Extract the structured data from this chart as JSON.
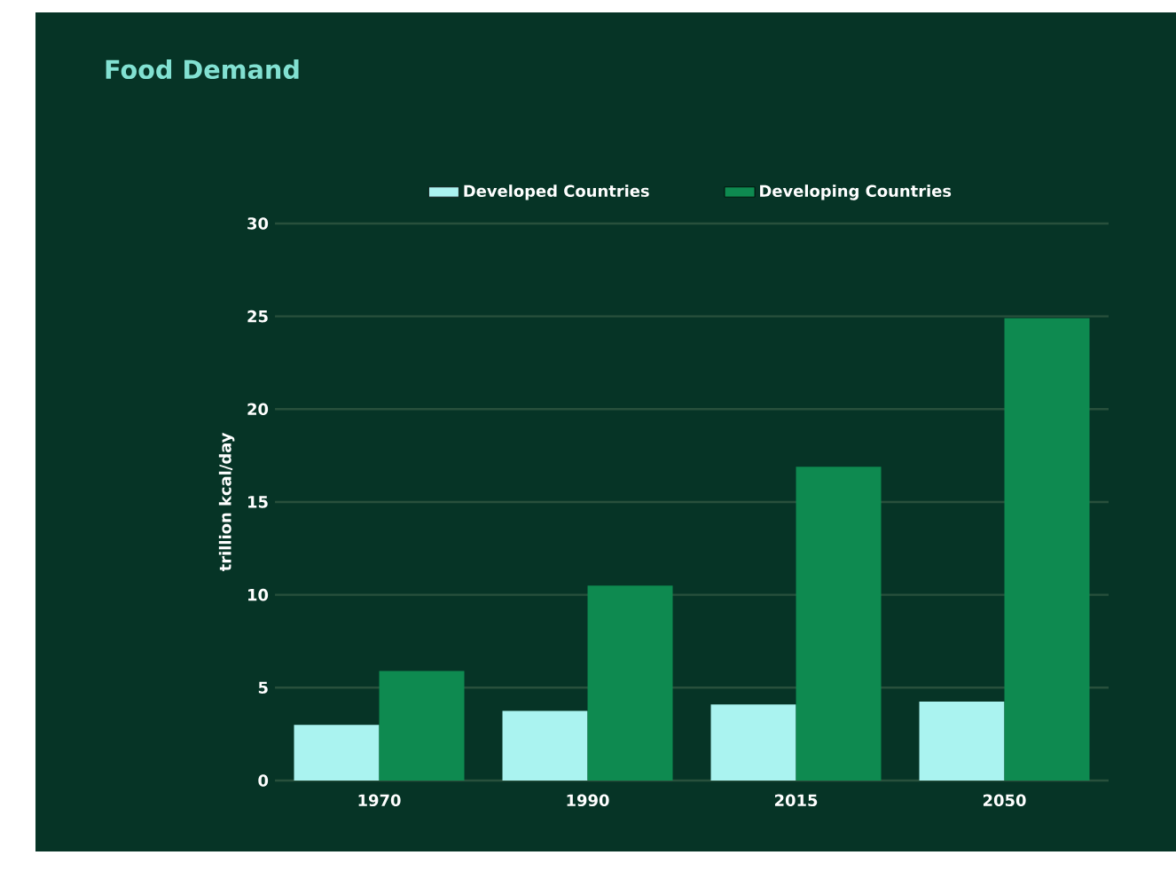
{
  "chart_data": {
    "type": "bar",
    "title": "Food Demand",
    "ylabel": "trillion kcal/day",
    "categories": [
      "1970",
      "1990",
      "2015",
      "2050"
    ],
    "series": [
      {
        "name": "Developed Countries",
        "color": "#aaf3f0",
        "values": [
          3.0,
          3.75,
          4.1,
          4.25
        ]
      },
      {
        "name": "Developing Countries",
        "color": "#0e8a50",
        "values": [
          5.9,
          10.5,
          16.9,
          24.9
        ]
      }
    ],
    "ylim": [
      0,
      30
    ],
    "yticks": [
      0,
      5,
      10,
      15,
      20,
      25,
      30
    ],
    "grid": "y",
    "legend": "top"
  }
}
